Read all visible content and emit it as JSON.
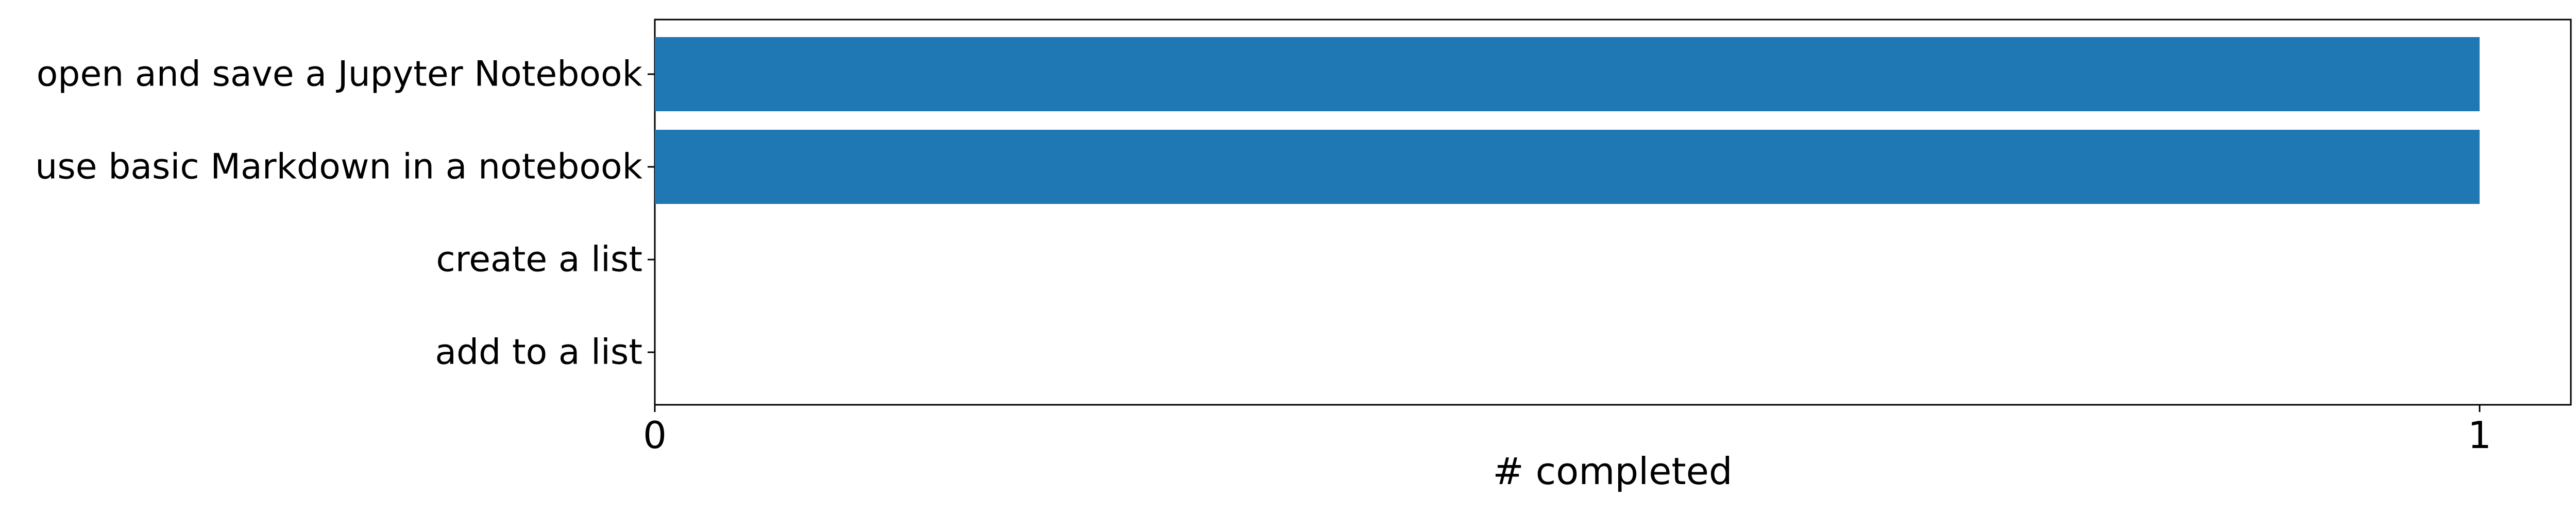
{
  "chart_data": {
    "type": "bar",
    "orientation": "horizontal",
    "categories": [
      "open and save a Jupyter Notebook",
      "use basic Markdown in a notebook",
      "create a list",
      "add to a list"
    ],
    "values": [
      1,
      1,
      0,
      0
    ],
    "title": "",
    "xlabel": "# completed",
    "ylabel": "",
    "xlim": [
      0,
      1.05
    ],
    "xticks": [
      0,
      1
    ],
    "xtick_labels": [
      "0",
      "1"
    ],
    "grid": false,
    "bar_color": "#1f77b4"
  }
}
